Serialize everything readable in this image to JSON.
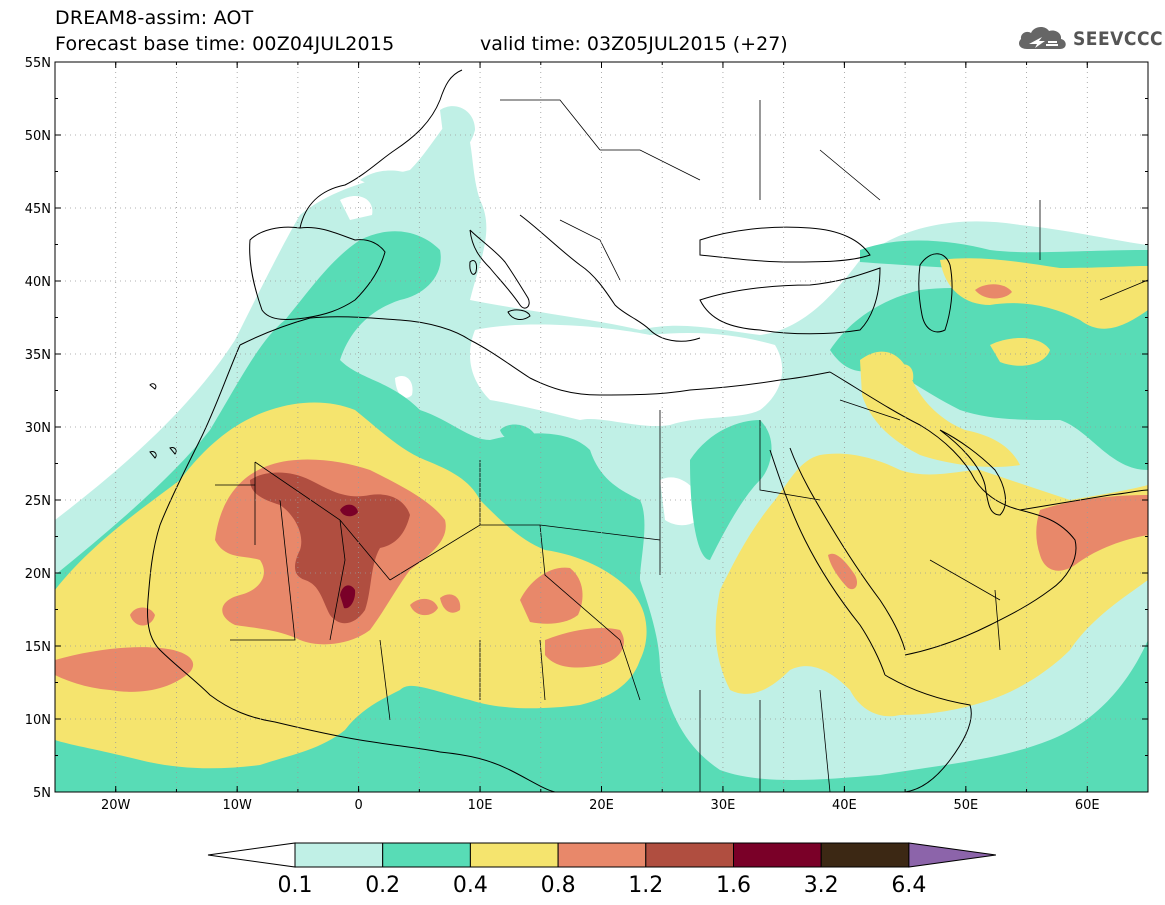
{
  "header": {
    "title": "DREAM8-assim: AOT",
    "base_time": "Forecast base time: 00Z04JUL2015",
    "valid_time": "valid time: 03Z05JUL2015 (+27)"
  },
  "logo": {
    "text": "SEEVCCC",
    "icon": "cloud-icon"
  },
  "axes": {
    "lat_labels": [
      "55N",
      "50N",
      "45N",
      "40N",
      "35N",
      "30N",
      "25N",
      "20N",
      "15N",
      "10N",
      "5N"
    ],
    "lat_values": [
      55,
      50,
      45,
      40,
      35,
      30,
      25,
      20,
      15,
      10,
      5
    ],
    "lon_labels": [
      "20W",
      "10W",
      "0",
      "10E",
      "20E",
      "30E",
      "40E",
      "50E",
      "60E"
    ],
    "lon_values": [
      -20,
      -10,
      0,
      10,
      20,
      30,
      40,
      50,
      60
    ],
    "lon_range": [
      -25,
      65
    ],
    "lat_range": [
      5,
      55
    ],
    "grid": "dotted"
  },
  "colorbar": {
    "levels": [
      "0.1",
      "0.2",
      "0.4",
      "0.8",
      "1.2",
      "1.6",
      "3.2",
      "6.4"
    ],
    "colors": [
      "#ffffff",
      "#c0f0e6",
      "#58dcb6",
      "#f5e46e",
      "#e8886a",
      "#b04e40",
      "#7a0028",
      "#3c2814",
      "#8c64aa"
    ]
  }
}
